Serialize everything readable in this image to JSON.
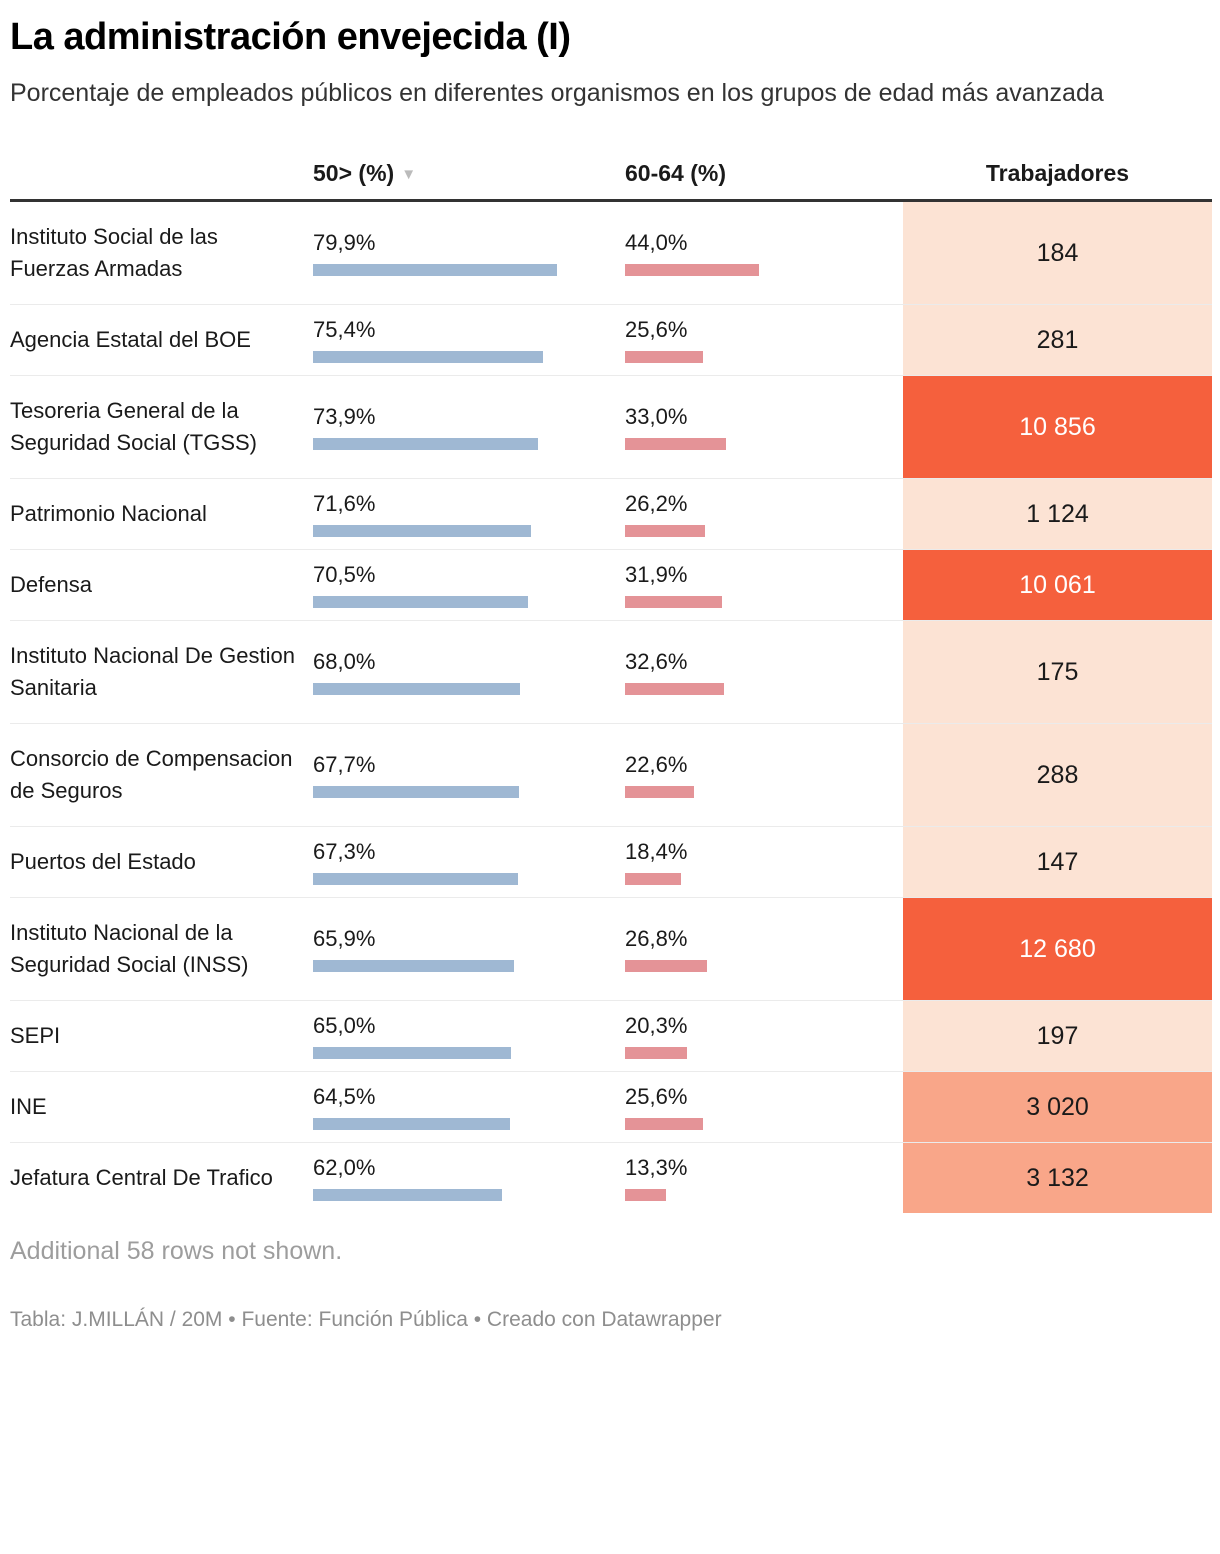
{
  "title": "La administración envejecida (I)",
  "subtitle": "Porcentaje de empleados públicos en diferentes organismos en los grupos de edad más avanzada",
  "header": {
    "col_pct50": "50> (%)",
    "col_pct6064": "60-64 (%)",
    "col_workers": "Trabajadores",
    "sort_icon": "▼"
  },
  "rows": [
    {
      "name": "Instituto Social de las Fuerzas Armadas",
      "pct50_label": "79,9%",
      "pct50": 79.9,
      "pct6064_label": "44,0%",
      "pct6064": 44.0,
      "workers_label": "184",
      "workers": 184
    },
    {
      "name": "Agencia Estatal del BOE",
      "pct50_label": "75,4%",
      "pct50": 75.4,
      "pct6064_label": "25,6%",
      "pct6064": 25.6,
      "workers_label": "281",
      "workers": 281
    },
    {
      "name": "Tesoreria General de la Seguridad Social (TGSS)",
      "pct50_label": "73,9%",
      "pct50": 73.9,
      "pct6064_label": "33,0%",
      "pct6064": 33.0,
      "workers_label": "10 856",
      "workers": 10856
    },
    {
      "name": "Patrimonio Nacional",
      "pct50_label": "71,6%",
      "pct50": 71.6,
      "pct6064_label": "26,2%",
      "pct6064": 26.2,
      "workers_label": "1 124",
      "workers": 1124
    },
    {
      "name": "Defensa",
      "pct50_label": "70,5%",
      "pct50": 70.5,
      "pct6064_label": "31,9%",
      "pct6064": 31.9,
      "workers_label": "10 061",
      "workers": 10061
    },
    {
      "name": "Instituto Nacional De Gestion Sanitaria",
      "pct50_label": "68,0%",
      "pct50": 68.0,
      "pct6064_label": "32,6%",
      "pct6064": 32.6,
      "workers_label": "175",
      "workers": 175
    },
    {
      "name": "Consorcio de Compensacion de Seguros",
      "pct50_label": "67,7%",
      "pct50": 67.7,
      "pct6064_label": "22,6%",
      "pct6064": 22.6,
      "workers_label": "288",
      "workers": 288
    },
    {
      "name": "Puertos del Estado",
      "pct50_label": "67,3%",
      "pct50": 67.3,
      "pct6064_label": "18,4%",
      "pct6064": 18.4,
      "workers_label": "147",
      "workers": 147
    },
    {
      "name": "Instituto Nacional de la Seguridad Social (INSS)",
      "pct50_label": "65,9%",
      "pct50": 65.9,
      "pct6064_label": "26,8%",
      "pct6064": 26.8,
      "workers_label": "12 680",
      "workers": 12680
    },
    {
      "name": "SEPI",
      "pct50_label": "65,0%",
      "pct50": 65.0,
      "pct6064_label": "20,3%",
      "pct6064": 20.3,
      "workers_label": "197",
      "workers": 197
    },
    {
      "name": "INE",
      "pct50_label": "64,5%",
      "pct50": 64.5,
      "pct6064_label": "25,6%",
      "pct6064": 25.6,
      "workers_label": "3 020",
      "workers": 3020
    },
    {
      "name": "Jefatura Central De Trafico",
      "pct50_label": "62,0%",
      "pct50": 62.0,
      "pct6064_label": "13,3%",
      "pct6064": 13.3,
      "workers_label": "3 132",
      "workers": 3132
    }
  ],
  "notes": {
    "additional": "Additional 58 rows not shown.",
    "source": "Tabla: J.MILLÁN / 20M • Fuente: Función Pública • Creado con Datawrapper"
  },
  "colors": {
    "bar_blue": "#9fb8d3",
    "bar_pink": "#e49397",
    "workers_light": "#fce3d4",
    "workers_medium": "#f9a689",
    "workers_strong": "#f5603d",
    "header_rule": "#333333",
    "note_gray": "#9d9d9d"
  },
  "chart_data": {
    "type": "table",
    "title": "La administración envejecida (I)",
    "subtitle": "Porcentaje de empleados públicos en diferentes organismos en los grupos de edad más avanzada",
    "categories": [
      "Instituto Social de las Fuerzas Armadas",
      "Agencia Estatal del BOE",
      "Tesoreria General de la Seguridad Social (TGSS)",
      "Patrimonio Nacional",
      "Defensa",
      "Instituto Nacional De Gestion Sanitaria",
      "Consorcio de Compensacion de Seguros",
      "Puertos del Estado",
      "Instituto Nacional de la Seguridad Social (INSS)",
      "SEPI",
      "INE",
      "Jefatura Central De Trafico"
    ],
    "series": [
      {
        "name": "50> (%)",
        "type": "bar",
        "color": "#9fb8d3",
        "values": [
          79.9,
          75.4,
          73.9,
          71.6,
          70.5,
          68.0,
          67.7,
          67.3,
          65.9,
          65.0,
          64.5,
          62.0
        ]
      },
      {
        "name": "60-64 (%)",
        "type": "bar",
        "color": "#e49397",
        "values": [
          44.0,
          25.6,
          33.0,
          26.2,
          31.9,
          32.6,
          22.6,
          18.4,
          26.8,
          20.3,
          25.6,
          13.3
        ]
      },
      {
        "name": "Trabajadores",
        "type": "heatmap",
        "values": [
          184,
          281,
          10856,
          1124,
          10061,
          175,
          288,
          147,
          12680,
          197,
          3020,
          3132
        ]
      }
    ],
    "layout": {
      "sorted_by": "50> (%)",
      "sort_order": "descending",
      "bar_scale_max_pct": 100
    }
  }
}
